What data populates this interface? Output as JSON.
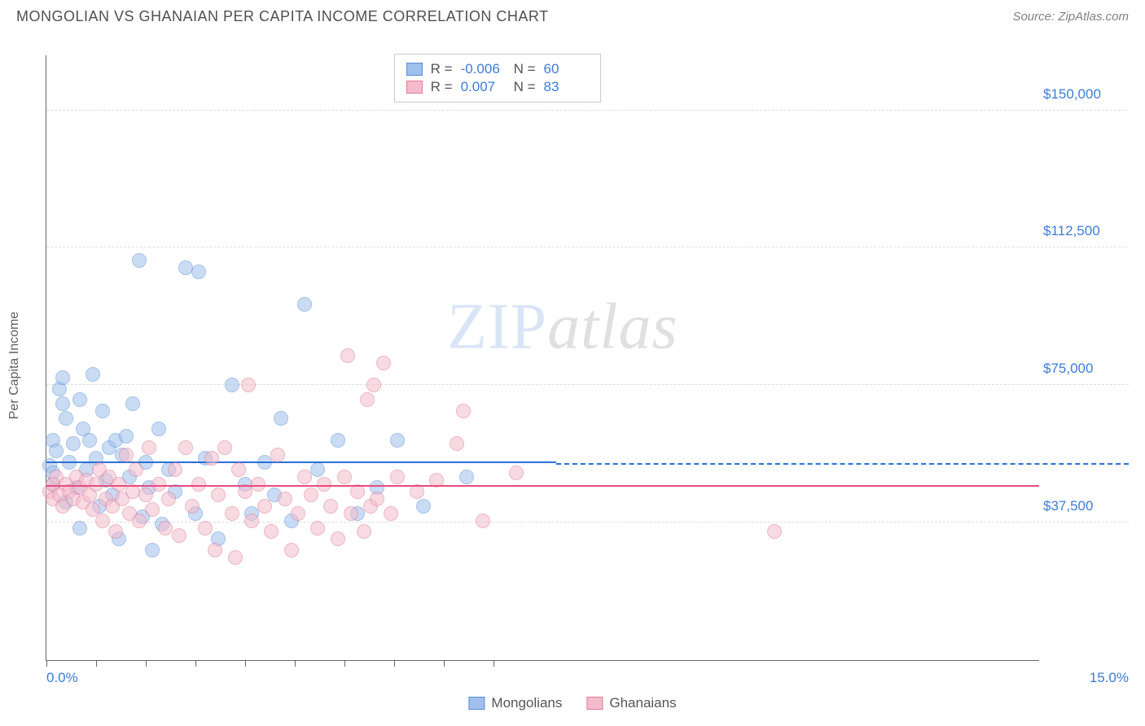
{
  "title": "MONGOLIAN VS GHANAIAN PER CAPITA INCOME CORRELATION CHART",
  "source": "Source: ZipAtlas.com",
  "y_axis_label": "Per Capita Income",
  "watermark": {
    "part1": "ZIP",
    "part2": "atlas"
  },
  "chart": {
    "type": "scatter",
    "background_color": "#ffffff",
    "grid_color": "#dddddd",
    "axis_color": "#666666",
    "tick_label_color": "#3b7dd8",
    "xlim": [
      0,
      15
    ],
    "ylim": [
      0,
      165000
    ],
    "y_ticks": [
      {
        "value": 37500,
        "label": "$37,500"
      },
      {
        "value": 75000,
        "label": "$75,000"
      },
      {
        "value": 112500,
        "label": "$112,500"
      },
      {
        "value": 150000,
        "label": "$150,000"
      }
    ],
    "x_ticks_at": [
      0,
      0.75,
      1.5,
      2.25,
      3.0,
      3.75,
      4.5,
      5.25,
      6.0,
      6.75
    ],
    "x_labels": [
      {
        "value": 0,
        "label": "0.0%",
        "align": "left"
      },
      {
        "value": 15,
        "label": "15.0%",
        "align": "right"
      }
    ],
    "point_radius": 9,
    "point_opacity": 0.55,
    "series": [
      {
        "name": "Mongolians",
        "fill_color": "#9fc0ec",
        "stroke_color": "#5a8fd6",
        "trend_color": "#2a6fd6",
        "R": "-0.006",
        "N": "60",
        "trend": {
          "y_start": 54000,
          "y_end": 53200,
          "solid_until_x": 7.7
        },
        "points": [
          [
            0.05,
            53000
          ],
          [
            0.1,
            51000
          ],
          [
            0.1,
            48000
          ],
          [
            0.1,
            60000
          ],
          [
            0.15,
            57000
          ],
          [
            0.2,
            74000
          ],
          [
            0.25,
            70000
          ],
          [
            0.25,
            77000
          ],
          [
            0.3,
            43000
          ],
          [
            0.3,
            66000
          ],
          [
            0.35,
            54000
          ],
          [
            0.4,
            59000
          ],
          [
            0.45,
            47000
          ],
          [
            0.5,
            71000
          ],
          [
            0.5,
            36000
          ],
          [
            0.55,
            63000
          ],
          [
            0.6,
            52000
          ],
          [
            0.65,
            60000
          ],
          [
            0.7,
            78000
          ],
          [
            0.75,
            55000
          ],
          [
            0.8,
            42000
          ],
          [
            0.85,
            68000
          ],
          [
            0.9,
            49000
          ],
          [
            0.95,
            58000
          ],
          [
            1.0,
            45000
          ],
          [
            1.05,
            60000
          ],
          [
            1.1,
            33000
          ],
          [
            1.15,
            56000
          ],
          [
            1.2,
            61000
          ],
          [
            1.25,
            50000
          ],
          [
            1.3,
            70000
          ],
          [
            1.4,
            109000
          ],
          [
            1.45,
            39000
          ],
          [
            1.5,
            54000
          ],
          [
            1.55,
            47000
          ],
          [
            1.6,
            30000
          ],
          [
            1.7,
            63000
          ],
          [
            1.75,
            37000
          ],
          [
            1.85,
            52000
          ],
          [
            1.95,
            46000
          ],
          [
            2.1,
            107000
          ],
          [
            2.3,
            106000
          ],
          [
            2.25,
            40000
          ],
          [
            2.4,
            55000
          ],
          [
            2.6,
            33000
          ],
          [
            2.8,
            75000
          ],
          [
            3.0,
            48000
          ],
          [
            3.1,
            40000
          ],
          [
            3.3,
            54000
          ],
          [
            3.45,
            45000
          ],
          [
            3.55,
            66000
          ],
          [
            3.7,
            38000
          ],
          [
            3.9,
            97000
          ],
          [
            4.1,
            52000
          ],
          [
            4.4,
            60000
          ],
          [
            4.7,
            40000
          ],
          [
            5.0,
            47000
          ],
          [
            5.3,
            60000
          ],
          [
            5.7,
            42000
          ],
          [
            6.35,
            50000
          ]
        ]
      },
      {
        "name": "Ghanaians",
        "fill_color": "#f4bccb",
        "stroke_color": "#e07a9a",
        "trend_color": "#e94c80",
        "R": "0.007",
        "N": "83",
        "trend": {
          "y_start": 47000,
          "y_end": 47500,
          "solid_until_x": 15
        },
        "points": [
          [
            0.05,
            46000
          ],
          [
            0.1,
            44000
          ],
          [
            0.1,
            48000
          ],
          [
            0.15,
            50000
          ],
          [
            0.2,
            45000
          ],
          [
            0.25,
            42000
          ],
          [
            0.3,
            48000
          ],
          [
            0.35,
            46000
          ],
          [
            0.4,
            44000
          ],
          [
            0.45,
            50000
          ],
          [
            0.5,
            47000
          ],
          [
            0.55,
            43000
          ],
          [
            0.6,
            49000
          ],
          [
            0.65,
            45000
          ],
          [
            0.7,
            41000
          ],
          [
            0.75,
            48000
          ],
          [
            0.8,
            52000
          ],
          [
            0.85,
            38000
          ],
          [
            0.9,
            44000
          ],
          [
            0.95,
            50000
          ],
          [
            1.0,
            42000
          ],
          [
            1.05,
            35000
          ],
          [
            1.1,
            48000
          ],
          [
            1.15,
            44000
          ],
          [
            1.2,
            56000
          ],
          [
            1.25,
            40000
          ],
          [
            1.3,
            46000
          ],
          [
            1.35,
            52000
          ],
          [
            1.4,
            38000
          ],
          [
            1.5,
            45000
          ],
          [
            1.55,
            58000
          ],
          [
            1.6,
            41000
          ],
          [
            1.7,
            48000
          ],
          [
            1.8,
            36000
          ],
          [
            1.85,
            44000
          ],
          [
            1.95,
            52000
          ],
          [
            2.0,
            34000
          ],
          [
            2.1,
            58000
          ],
          [
            2.2,
            42000
          ],
          [
            2.3,
            48000
          ],
          [
            2.4,
            36000
          ],
          [
            2.5,
            55000
          ],
          [
            2.55,
            30000
          ],
          [
            2.6,
            45000
          ],
          [
            2.7,
            58000
          ],
          [
            2.8,
            40000
          ],
          [
            2.85,
            28000
          ],
          [
            2.9,
            52000
          ],
          [
            3.0,
            46000
          ],
          [
            3.05,
            75000
          ],
          [
            3.1,
            38000
          ],
          [
            3.2,
            48000
          ],
          [
            3.3,
            42000
          ],
          [
            3.4,
            35000
          ],
          [
            3.5,
            56000
          ],
          [
            3.6,
            44000
          ],
          [
            3.7,
            30000
          ],
          [
            3.8,
            40000
          ],
          [
            3.9,
            50000
          ],
          [
            4.0,
            45000
          ],
          [
            4.1,
            36000
          ],
          [
            4.2,
            48000
          ],
          [
            4.3,
            42000
          ],
          [
            4.4,
            33000
          ],
          [
            4.5,
            50000
          ],
          [
            4.55,
            83000
          ],
          [
            4.6,
            40000
          ],
          [
            4.7,
            46000
          ],
          [
            4.8,
            35000
          ],
          [
            4.85,
            71000
          ],
          [
            4.9,
            42000
          ],
          [
            4.95,
            75000
          ],
          [
            5.0,
            44000
          ],
          [
            5.1,
            81000
          ],
          [
            5.2,
            40000
          ],
          [
            5.3,
            50000
          ],
          [
            5.6,
            46000
          ],
          [
            5.9,
            49000
          ],
          [
            6.2,
            59000
          ],
          [
            6.3,
            68000
          ],
          [
            6.6,
            38000
          ],
          [
            7.1,
            51000
          ],
          [
            11.0,
            35000
          ]
        ]
      }
    ]
  },
  "stats_box_labels": {
    "R": "R =",
    "N": "N ="
  },
  "legend_labels": [
    "Mongolians",
    "Ghanaians"
  ]
}
